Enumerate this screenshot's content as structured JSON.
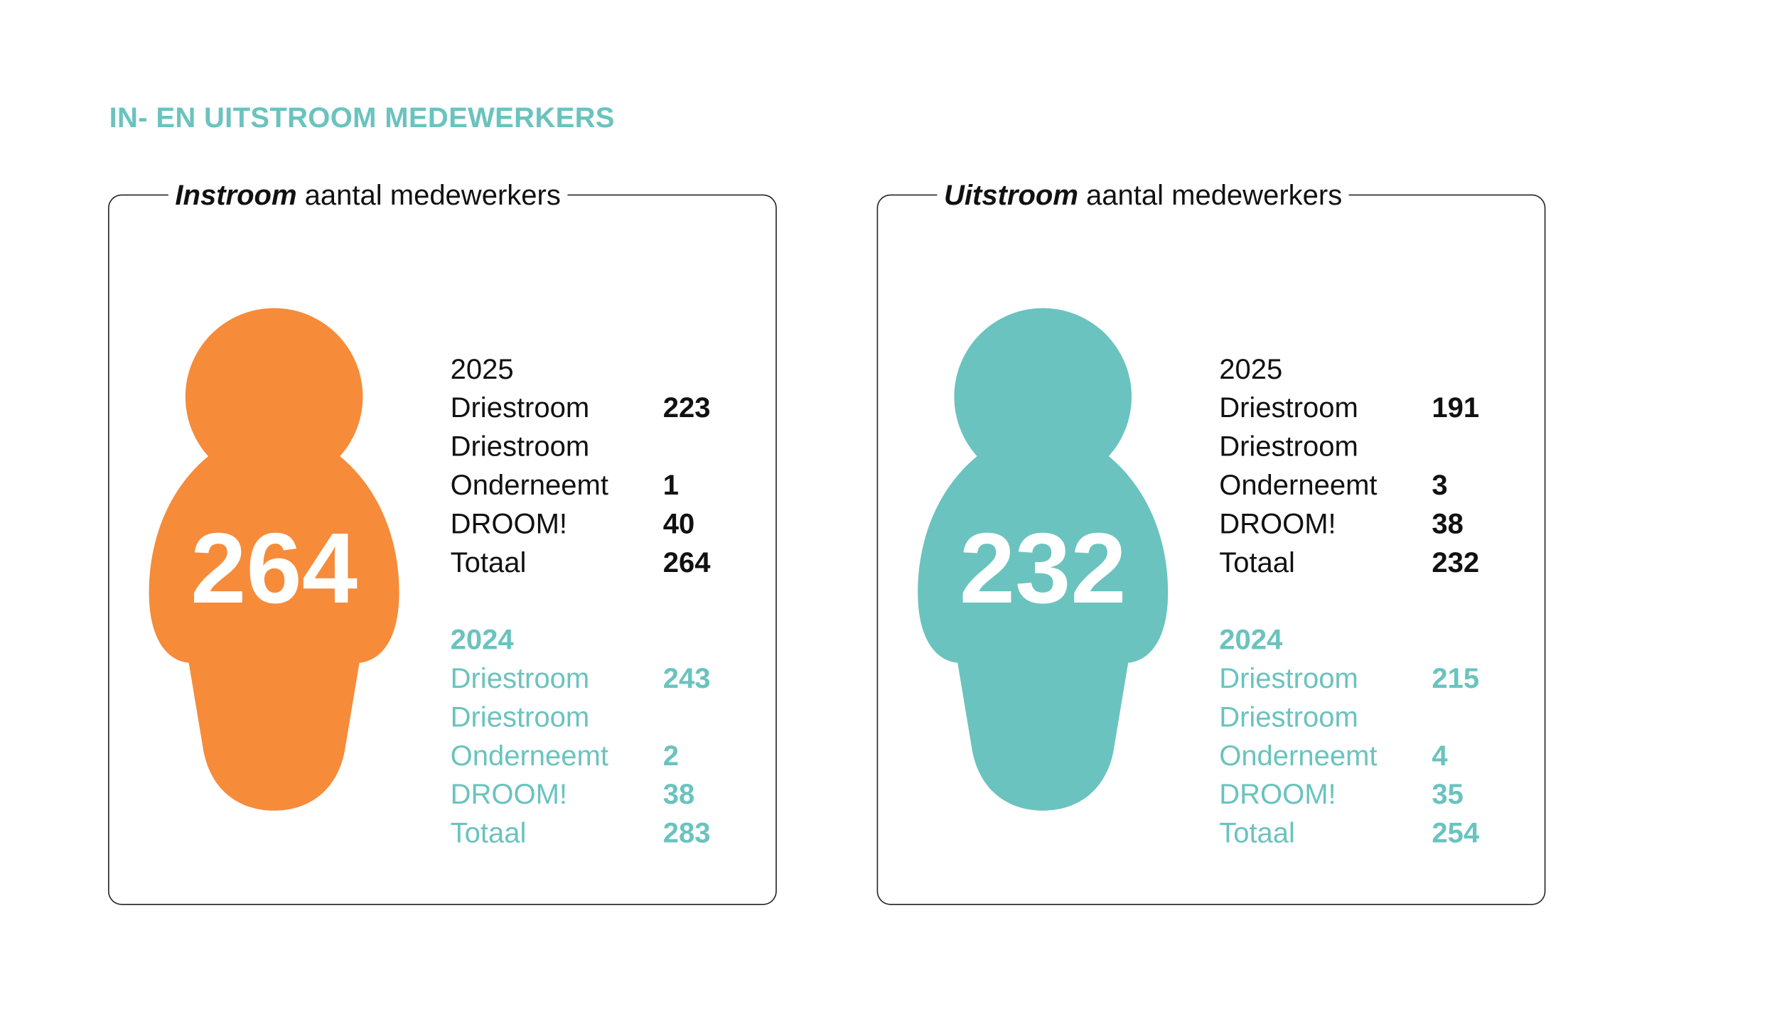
{
  "title": "IN- EN UITSTROOM MEDEWERKERS",
  "panels": [
    {
      "heading_bold": "Instroom",
      "heading_rest": "aantal medewerkers",
      "big_number": 264,
      "color": "#f68b3a",
      "years": [
        {
          "year": "2025",
          "color": "#111111",
          "rows": [
            {
              "label": "Driestroom",
              "value": 223
            },
            {
              "label": "Driestroom Onderneemt",
              "value": 1
            },
            {
              "label": "DROOM!",
              "value": 40
            },
            {
              "label": "Totaal",
              "value": 264
            }
          ]
        },
        {
          "year": "2024",
          "color": "#6ac3be",
          "rows": [
            {
              "label": "Driestroom",
              "value": 243
            },
            {
              "label": "Driestroom Onderneemt",
              "value": 2
            },
            {
              "label": "DROOM!",
              "value": 38
            },
            {
              "label": "Totaal",
              "value": 283
            }
          ]
        }
      ]
    },
    {
      "heading_bold": "Uitstroom",
      "heading_rest": "aantal medewerkers",
      "big_number": 232,
      "color": "#6ac3be",
      "years": [
        {
          "year": "2025",
          "color": "#111111",
          "rows": [
            {
              "label": "Driestroom",
              "value": 191
            },
            {
              "label": "Driestroom Onderneemt",
              "value": 3
            },
            {
              "label": "DROOM!",
              "value": 38
            },
            {
              "label": "Totaal",
              "value": 232
            }
          ]
        },
        {
          "year": "2024",
          "color": "#6ac3be",
          "rows": [
            {
              "label": "Driestroom",
              "value": 215
            },
            {
              "label": "Driestroom Onderneemt",
              "value": 4
            },
            {
              "label": "DROOM!",
              "value": 35
            },
            {
              "label": "Totaal",
              "value": 254
            }
          ]
        }
      ]
    }
  ]
}
